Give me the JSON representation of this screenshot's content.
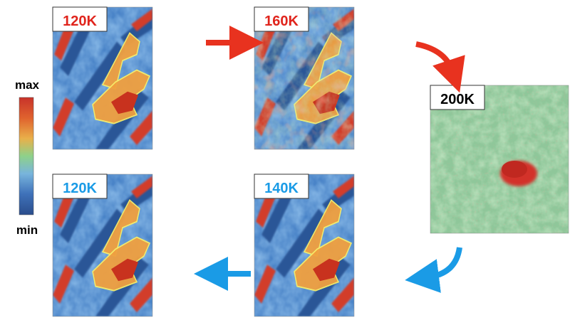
{
  "colorbar": {
    "max_label": "max",
    "min_label": "min",
    "colors": [
      "#c8322a",
      "#e0642e",
      "#e9b04a",
      "#8ed18a",
      "#78b4dc",
      "#3f72ba",
      "#2a4d8c"
    ]
  },
  "panels": [
    {
      "id": "120K-heating",
      "label": "120K",
      "label_color": "#e0241c",
      "state": "stripes-and-domain"
    },
    {
      "id": "160K",
      "label": "160K",
      "label_color": "#e0241c",
      "state": "stripes-and-domain-noisy"
    },
    {
      "id": "200K",
      "label": "200K",
      "label_color": "#000000",
      "state": "uniform-with-blob"
    },
    {
      "id": "140K",
      "label": "140K",
      "label_color": "#1a9be6",
      "state": "stripes-and-domain"
    },
    {
      "id": "120K-cooling",
      "label": "120K",
      "label_color": "#1a9be6",
      "state": "stripes-and-domain"
    }
  ],
  "arrows": {
    "heating_color": "#e8321f",
    "cooling_color": "#1a9be6"
  }
}
